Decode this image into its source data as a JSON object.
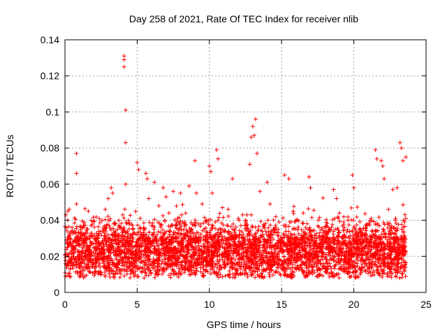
{
  "chart_data": {
    "type": "scatter",
    "title": "Day 258 of 2021, Rate Of TEC Index for receiver nlib",
    "xlabel": "GPS time / hours",
    "ylabel": "ROTI / TECUs",
    "xlim": [
      0,
      25
    ],
    "ylim": [
      0,
      0.14
    ],
    "xticks": [
      0,
      5,
      10,
      15,
      20,
      25
    ],
    "xtick_labels": [
      "0",
      "5",
      "10",
      "15",
      "20",
      "25"
    ],
    "yticks": [
      0,
      0.02,
      0.04,
      0.06,
      0.08,
      0.1,
      0.12,
      0.14
    ],
    "ytick_labels": [
      "0",
      "0.02",
      "0.04",
      "0.06",
      "0.08",
      "0.1",
      "0.12",
      "0.14"
    ],
    "grid": true,
    "marker": "+",
    "color": "#ff0000",
    "series": [
      {
        "name": "ROTI",
        "points": [
          [
            0.1,
            0.015
          ],
          [
            0.2,
            0.045
          ],
          [
            0.3,
            0.046
          ],
          [
            0.5,
            0.026
          ],
          [
            0.8,
            0.049
          ],
          [
            0.8,
            0.066
          ],
          [
            0.8,
            0.077
          ],
          [
            1.2,
            0.022
          ],
          [
            1.5,
            0.019
          ],
          [
            1.9,
            0.018
          ],
          [
            2.3,
            0.021
          ],
          [
            2.6,
            0.034
          ],
          [
            2.8,
            0.046
          ],
          [
            3.0,
            0.052
          ],
          [
            3.2,
            0.058
          ],
          [
            3.3,
            0.055
          ],
          [
            3.5,
            0.038
          ],
          [
            3.7,
            0.031
          ],
          [
            4.0,
            0.043
          ],
          [
            4.1,
            0.131
          ],
          [
            4.1,
            0.129
          ],
          [
            4.1,
            0.125
          ],
          [
            4.2,
            0.101
          ],
          [
            4.2,
            0.083
          ],
          [
            4.2,
            0.06
          ],
          [
            4.4,
            0.04
          ],
          [
            4.7,
            0.035
          ],
          [
            5.0,
            0.072
          ],
          [
            5.1,
            0.068
          ],
          [
            5.3,
            0.032
          ],
          [
            5.6,
            0.066
          ],
          [
            5.7,
            0.063
          ],
          [
            5.8,
            0.052
          ],
          [
            6.0,
            0.037
          ],
          [
            6.2,
            0.061
          ],
          [
            6.5,
            0.048
          ],
          [
            6.8,
            0.058
          ],
          [
            7.0,
            0.053
          ],
          [
            7.2,
            0.044
          ],
          [
            7.5,
            0.056
          ],
          [
            7.8,
            0.041
          ],
          [
            8.0,
            0.055
          ],
          [
            8.3,
            0.039
          ],
          [
            8.6,
            0.059
          ],
          [
            9.0,
            0.073
          ],
          [
            9.1,
            0.055
          ],
          [
            9.5,
            0.049
          ],
          [
            9.8,
            0.04
          ],
          [
            10.0,
            0.07
          ],
          [
            10.1,
            0.067
          ],
          [
            10.2,
            0.055
          ],
          [
            10.5,
            0.079
          ],
          [
            10.6,
            0.074
          ],
          [
            10.9,
            0.047
          ],
          [
            11.3,
            0.046
          ],
          [
            11.6,
            0.063
          ],
          [
            12.0,
            0.041
          ],
          [
            12.3,
            0.043
          ],
          [
            12.6,
            0.043
          ],
          [
            12.8,
            0.071
          ],
          [
            12.9,
            0.086
          ],
          [
            13.0,
            0.092
          ],
          [
            13.1,
            0.087
          ],
          [
            13.2,
            0.096
          ],
          [
            13.3,
            0.077
          ],
          [
            13.5,
            0.056
          ],
          [
            13.8,
            0.037
          ],
          [
            14.0,
            0.061
          ],
          [
            14.2,
            0.049
          ],
          [
            14.4,
            0.032
          ],
          [
            14.6,
            0.042
          ],
          [
            15.2,
            0.065
          ],
          [
            15.5,
            0.063
          ],
          [
            15.8,
            0.045
          ],
          [
            16.0,
            0.04
          ],
          [
            16.5,
            0.044
          ],
          [
            16.9,
            0.064
          ],
          [
            17.0,
            0.058
          ],
          [
            17.3,
            0.03
          ],
          [
            17.6,
            0.031
          ],
          [
            18.0,
            0.029
          ],
          [
            18.3,
            0.035
          ],
          [
            18.6,
            0.057
          ],
          [
            18.8,
            0.052
          ],
          [
            19.0,
            0.044
          ],
          [
            19.3,
            0.039
          ],
          [
            19.6,
            0.04
          ],
          [
            19.9,
            0.065
          ],
          [
            20.0,
            0.058
          ],
          [
            20.3,
            0.033
          ],
          [
            20.6,
            0.03
          ],
          [
            20.8,
            0.032
          ],
          [
            21.2,
            0.041
          ],
          [
            21.5,
            0.079
          ],
          [
            21.6,
            0.074
          ],
          [
            21.9,
            0.073
          ],
          [
            22.0,
            0.07
          ],
          [
            22.1,
            0.063
          ],
          [
            22.4,
            0.046
          ],
          [
            22.7,
            0.057
          ],
          [
            23.0,
            0.058
          ],
          [
            23.2,
            0.083
          ],
          [
            23.3,
            0.08
          ],
          [
            23.4,
            0.073
          ],
          [
            23.6,
            0.075
          ],
          [
            23.6,
            0.041
          ]
        ]
      }
    ]
  }
}
